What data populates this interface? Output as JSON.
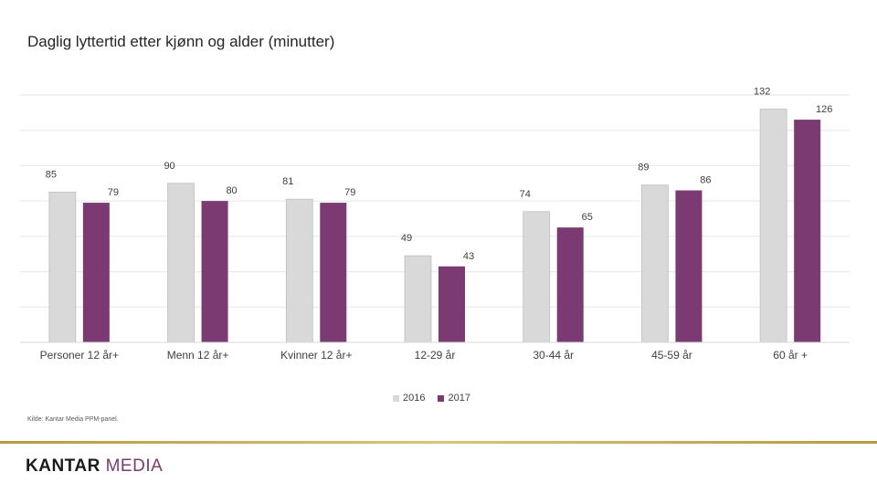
{
  "title": "Daglig lyttertid etter kjønn og alder (minutter)",
  "source": "Kilde: Kantar Media PPM-panel.",
  "logo": {
    "part1": "KANTAR",
    "part2": "MEDIA"
  },
  "colors": {
    "s2016": "#d9d9d9",
    "s2016_edge": "#bfbfbf",
    "s2017": "#7b3a72",
    "grid": "#e6e6e6",
    "text": "#404040"
  },
  "chart_data": {
    "type": "bar",
    "title": "Daglig lyttertid etter kjønn og alder (minutter)",
    "categories": [
      "Personer 12 år+",
      "Menn 12 år+",
      "Kvinner 12 år+",
      "12-29 år",
      "30-44 år",
      "45-59 år",
      "60 år +"
    ],
    "series": [
      {
        "name": "2016",
        "values": [
          85,
          90,
          81,
          49,
          74,
          89,
          132
        ]
      },
      {
        "name": "2017",
        "values": [
          79,
          80,
          79,
          43,
          65,
          86,
          126
        ]
      }
    ],
    "ylim": [
      0,
      140
    ],
    "grid": true,
    "legend": "bottom-center",
    "xlabel": "",
    "ylabel": ""
  }
}
